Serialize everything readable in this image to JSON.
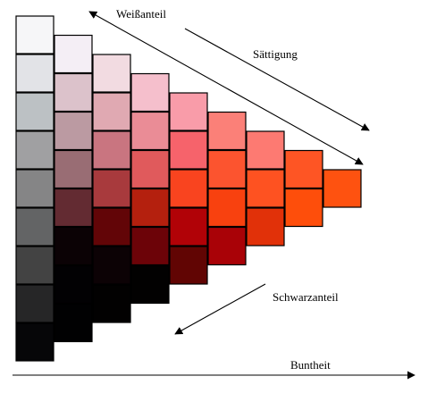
{
  "labels": {
    "weissanteil": "Weißanteil",
    "saettigung": "Sättigung",
    "schwarzanteil": "Schwarzanteil",
    "buntheit": "Buntheit"
  },
  "columns": [
    [
      "#f6f6f8",
      "#e2e3e7",
      "#bcc1c4",
      "#a0a0a2",
      "#858586",
      "#636465",
      "#434343",
      "#262627",
      "#060608"
    ],
    [
      "#f4eef5",
      "#dcc2cb",
      "#bb9aa2",
      "#996d74",
      "#632b32",
      "#0b0205",
      "#020103",
      "#010102"
    ],
    [
      "#f2dbe1",
      "#e0a9b2",
      "#c97580",
      "#a83a3d",
      "#620507",
      "#0c0205",
      "#020101"
    ],
    [
      "#f5bfcc",
      "#ea8c96",
      "#e05a5c",
      "#b4200e",
      "#6c0308",
      "#020101"
    ],
    [
      "#f99ca9",
      "#f6636b",
      "#f9441f",
      "#b10207",
      "#610503"
    ],
    [
      "#fb8078",
      "#fc542f",
      "#f8410f",
      "#a90207"
    ],
    [
      "#fd7a72",
      "#fe5221",
      "#e13109"
    ],
    [
      "#fe5524",
      "#fe4e0b"
    ],
    [
      "#fe5210"
    ]
  ]
}
